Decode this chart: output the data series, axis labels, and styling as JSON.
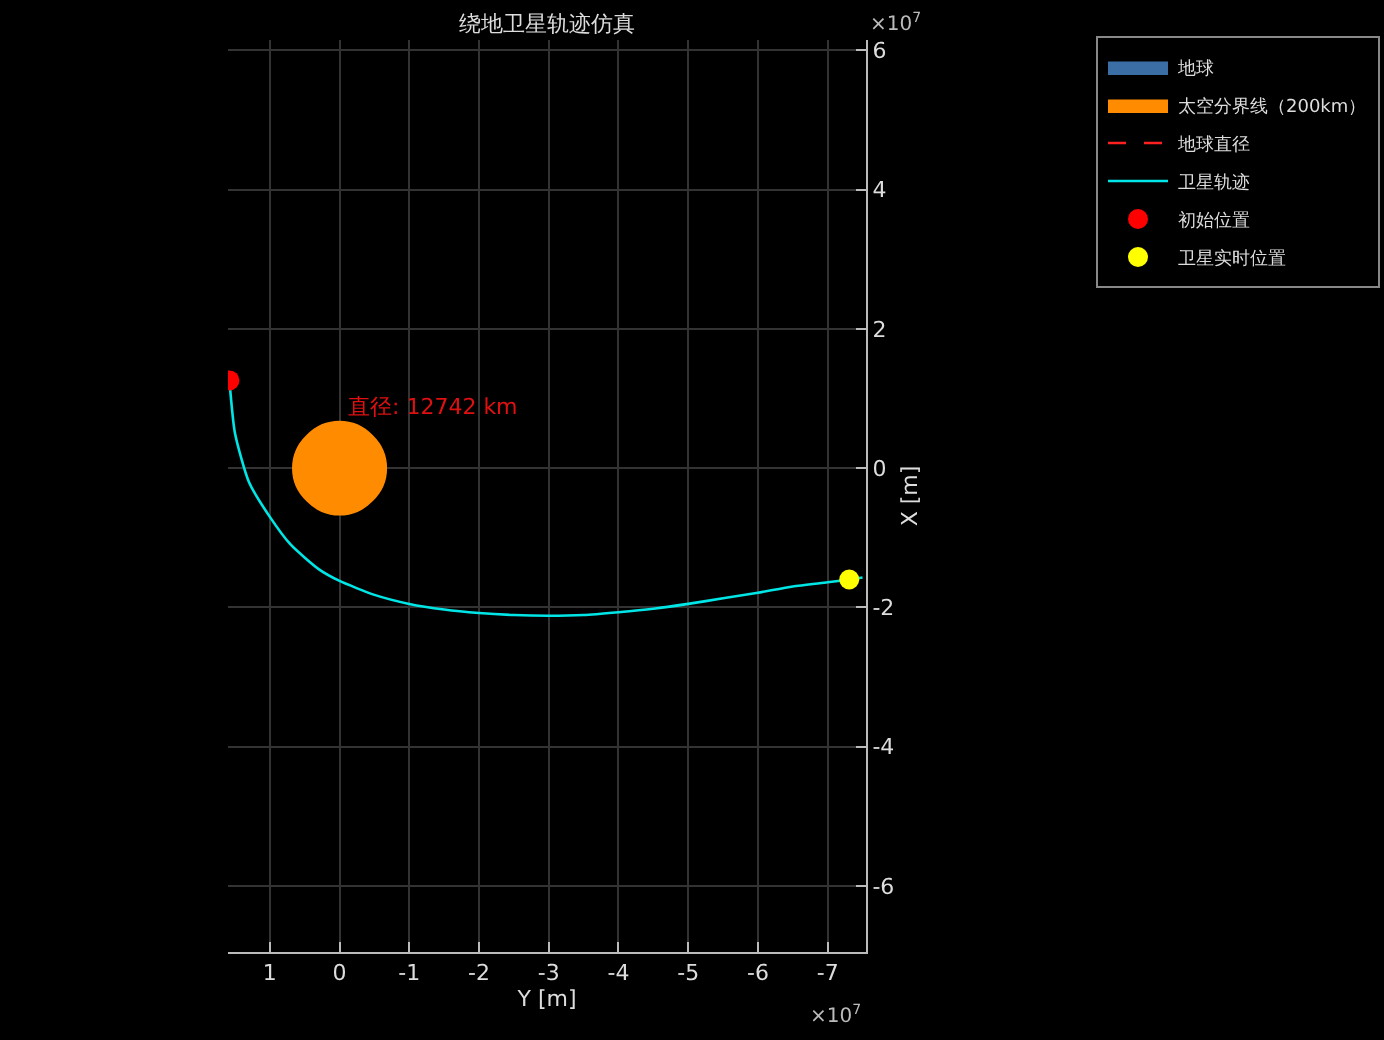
{
  "chart_data": {
    "type": "line",
    "title": "绕地卫星轨迹仿真",
    "xlabel": "Y [m]",
    "ylabel": "X [m]",
    "xlim": [
      1.6,
      -7.55
    ],
    "xticks": [
      1,
      0,
      -1,
      -2,
      -3,
      -4,
      -5,
      -6,
      -7
    ],
    "ylim": [
      -6.95,
      6.15
    ],
    "yticks": [
      -6,
      -4,
      -2,
      0,
      2,
      4,
      6
    ],
    "grid": true,
    "legend": "top right",
    "annotations": [
      {
        "text": "直径: 12742 km",
        "x": -0.05,
        "y": 0.63
      },
      "×10$^{7}$",
      "×10$^{7}$"
    ],
    "series": [
      {
        "name": "地球",
        "type": "area",
        "color": "#3a6ea5"
      },
      {
        "name": "太空分界线（200km）",
        "type": "area",
        "color": "#ff8c00",
        "x": [
          0.66,
          0.61,
          0.46,
          0.25,
          0,
          -0.25,
          -0.46,
          -0.61,
          -0.66,
          -0.61,
          -0.46,
          -0.25,
          0,
          0.25,
          0.46,
          0.61,
          0.66
        ],
        "values": [
          0,
          0.25,
          0.46,
          0.61,
          0.66,
          0.61,
          0.46,
          0.25,
          0,
          -0.25,
          -0.46,
          -0.61,
          -0.66,
          -0.61,
          -0.46,
          -0.25,
          0
        ]
      },
      {
        "name": "地球直径",
        "type": "line",
        "line_style": "dashed",
        "color": "#ff2020"
      },
      {
        "name": "卫星轨迹",
        "color": "#00e5e5",
        "x": [
          1.58,
          1.5,
          1.3,
          1.0,
          0.7,
          0.3,
          0,
          -0.5,
          -1,
          -1.5,
          -2,
          -2.5,
          -3,
          -3.5,
          -4,
          -4.5,
          -5,
          -5.5,
          -6,
          -6.5,
          -7,
          -7.31,
          -7.5
        ],
        "values": [
          1.26,
          0.5,
          -0.2,
          -0.7,
          -1.1,
          -1.45,
          -1.62,
          -1.82,
          -1.95,
          -2.03,
          -2.08,
          -2.11,
          -2.12,
          -2.11,
          -2.07,
          -2.02,
          -1.95,
          -1.87,
          -1.79,
          -1.7,
          -1.64,
          -1.6,
          -1.57
        ]
      },
      {
        "name": "初始位置",
        "type": "scatter",
        "marker": "circle",
        "color": "#ff0000",
        "x": [
          1.58
        ],
        "values": [
          1.26
        ]
      },
      {
        "name": "卫星实时位置",
        "type": "scatter",
        "marker": "circle",
        "color": "#ffff00",
        "x": [
          -7.31
        ],
        "values": [
          -1.6
        ]
      }
    ]
  }
}
